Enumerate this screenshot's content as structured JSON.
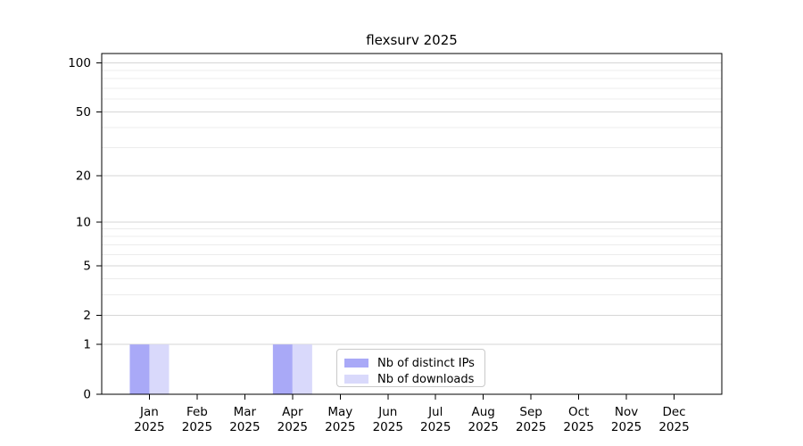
{
  "chart_data": {
    "type": "bar",
    "title": "flexsurv 2025",
    "categories": [
      "Jan",
      "Feb",
      "Mar",
      "Apr",
      "May",
      "Jun",
      "Jul",
      "Aug",
      "Sep",
      "Oct",
      "Nov",
      "Dec"
    ],
    "category_year": "2025",
    "series": [
      {
        "name": "Nb of distinct IPs",
        "color": "#a9a9f7",
        "values": [
          1,
          0,
          0,
          1,
          0,
          0,
          0,
          0,
          0,
          0,
          0,
          0
        ]
      },
      {
        "name": "Nb of downloads",
        "color": "#d9d9fb",
        "values": [
          1,
          0,
          0,
          1,
          0,
          0,
          0,
          0,
          0,
          0,
          0,
          0
        ]
      }
    ],
    "xlabel": "",
    "ylabel": "",
    "yscale": "log10(1+x)",
    "ylim": [
      0,
      114
    ],
    "yticks": [
      0,
      1,
      2,
      5,
      10,
      20,
      50,
      100
    ],
    "minor_gridlines": [
      3,
      4,
      6,
      7,
      8,
      9,
      30,
      40,
      60,
      70,
      80,
      90
    ],
    "grid": "horizontal",
    "legend_position": "bottom-center-inside",
    "colors": {
      "major_grid": "#d6d6d6",
      "minor_grid": "#ececec",
      "axis": "#000000",
      "tick_text": "#000000",
      "legend_border": "#c9c9c9",
      "background": "#ffffff"
    }
  }
}
